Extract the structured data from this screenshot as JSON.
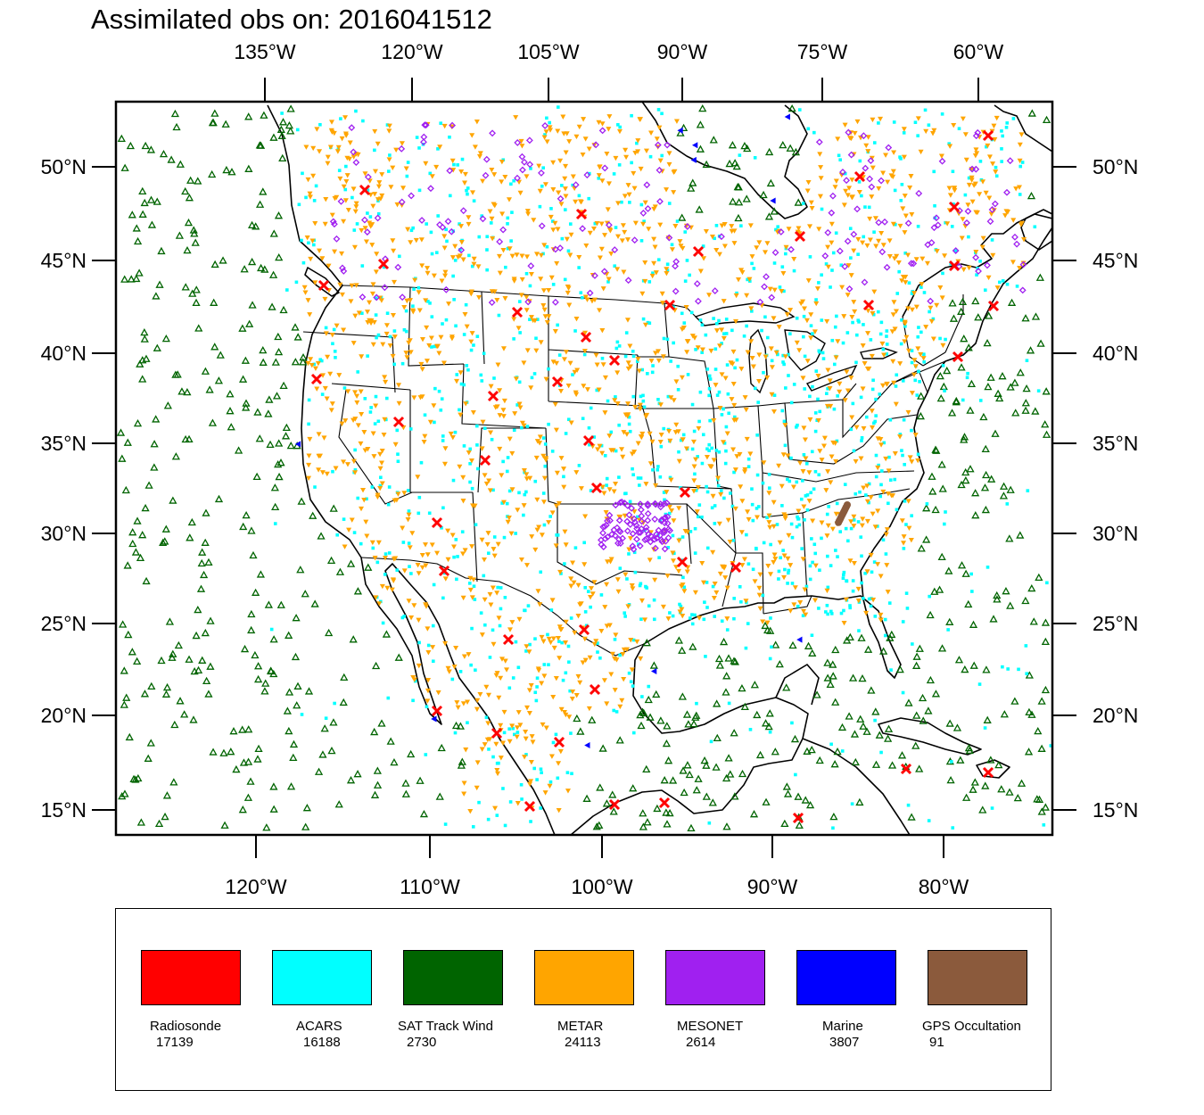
{
  "title": "Assimilated obs on: 2016041512",
  "map": {
    "top_lon_labels": [
      "135°W",
      "120°W",
      "105°W",
      "90°W",
      "75°W",
      "60°W"
    ],
    "bottom_lon_labels": [
      "120°W",
      "110°W",
      "100°W",
      "90°W",
      "80°W"
    ],
    "lat_labels": [
      "50°N",
      "45°N",
      "40°N",
      "35°N",
      "30°N",
      "25°N",
      "20°N",
      "15°N"
    ],
    "lon_range": [
      -128,
      -74
    ],
    "lat_range": [
      14,
      54
    ]
  },
  "legend": [
    {
      "label": "Radiosonde",
      "count": "17139",
      "color": "#ff0000",
      "marker": "x-icon"
    },
    {
      "label": "ACARS",
      "count": "16188",
      "color": "#00ffff",
      "marker": "square-dot-icon"
    },
    {
      "label": "SAT Track Wind",
      "count": "2730",
      "color": "#006400",
      "marker": "triangle-up-icon"
    },
    {
      "label": "METAR",
      "count": "24113",
      "color": "#ffa500",
      "marker": "triangle-down-icon"
    },
    {
      "label": "MESONET",
      "count": "2614",
      "color": "#a020f0",
      "marker": "diamond-icon"
    },
    {
      "label": "Marine",
      "count": "3807",
      "color": "#0000ff",
      "marker": "triangle-left-icon"
    },
    {
      "label": "GPS Occultation",
      "count": "91",
      "color": "#8b5a3c",
      "marker": "dot-icon"
    }
  ]
}
